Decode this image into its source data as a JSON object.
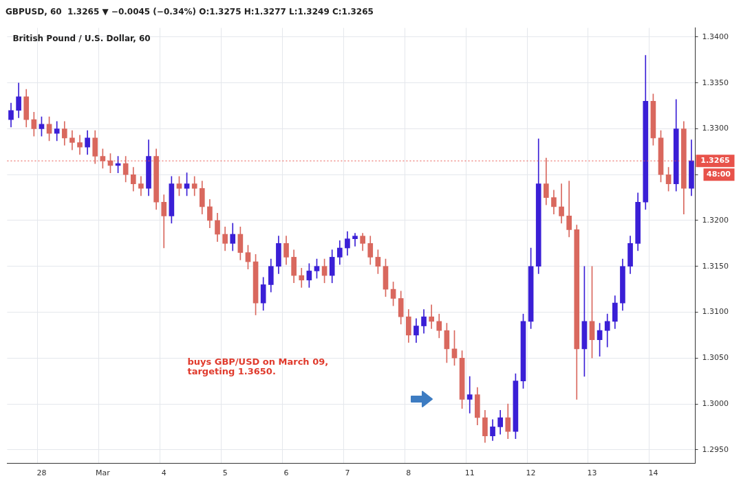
{
  "chart_data": {
    "type": "candlestick",
    "title": "GBPUSD, 60  1.3265 ▼ −0.0045 (−0.34%) O:1.3275 H:1.3277 L:1.3249 C:1.3265",
    "subtitle": "British Pound / U.S. Dollar, 60",
    "categories": [
      null,
      null,
      null,
      null,
      "28",
      null,
      null,
      null,
      null,
      null,
      null,
      null,
      "Mar",
      null,
      null,
      null,
      null,
      null,
      null,
      null,
      "4",
      null,
      null,
      null,
      null,
      null,
      null,
      null,
      "5",
      null,
      null,
      null,
      null,
      null,
      null,
      null,
      "6",
      null,
      null,
      null,
      null,
      null,
      null,
      null,
      "7",
      null,
      null,
      null,
      null,
      null,
      null,
      null,
      "8",
      null,
      null,
      null,
      null,
      null,
      null,
      null,
      "11",
      null,
      null,
      null,
      null,
      null,
      null,
      null,
      "12",
      null,
      null,
      null,
      null,
      null,
      null,
      null,
      "13",
      null,
      null,
      null,
      null,
      null,
      null,
      null,
      "14",
      null,
      null,
      null,
      null,
      null
    ],
    "ohlc": [
      [
        1.331,
        1.3328,
        1.3302,
        1.332
      ],
      [
        1.332,
        1.335,
        1.3312,
        1.3335
      ],
      [
        1.3335,
        1.3343,
        1.3302,
        1.331
      ],
      [
        1.331,
        1.3318,
        1.3292,
        1.33
      ],
      [
        1.33,
        1.3313,
        1.3292,
        1.3305
      ],
      [
        1.3305,
        1.3313,
        1.3287,
        1.3295
      ],
      [
        1.3295,
        1.3308,
        1.3287,
        1.33
      ],
      [
        1.33,
        1.3308,
        1.3282,
        1.329
      ],
      [
        1.329,
        1.3298,
        1.3277,
        1.3285
      ],
      [
        1.3285,
        1.3293,
        1.3272,
        1.328
      ],
      [
        1.328,
        1.3298,
        1.3272,
        1.329
      ],
      [
        1.329,
        1.3298,
        1.3262,
        1.327
      ],
      [
        1.327,
        1.3278,
        1.3257,
        1.3265
      ],
      [
        1.3265,
        1.3273,
        1.3252,
        1.326
      ],
      [
        1.326,
        1.327,
        1.3252,
        1.3262
      ],
      [
        1.3262,
        1.327,
        1.3242,
        1.325
      ],
      [
        1.325,
        1.3258,
        1.3232,
        1.324
      ],
      [
        1.324,
        1.3248,
        1.3227,
        1.3235
      ],
      [
        1.3235,
        1.3288,
        1.3227,
        1.327
      ],
      [
        1.327,
        1.3278,
        1.3212,
        1.322
      ],
      [
        1.322,
        1.3228,
        1.317,
        1.3205
      ],
      [
        1.3205,
        1.3248,
        1.3197,
        1.324
      ],
      [
        1.324,
        1.3248,
        1.3227,
        1.3235
      ],
      [
        1.3235,
        1.3252,
        1.3227,
        1.324
      ],
      [
        1.324,
        1.3248,
        1.3227,
        1.3235
      ],
      [
        1.3235,
        1.3243,
        1.3207,
        1.3215
      ],
      [
        1.3215,
        1.3223,
        1.3192,
        1.32
      ],
      [
        1.32,
        1.3208,
        1.3177,
        1.3185
      ],
      [
        1.3185,
        1.3193,
        1.3167,
        1.3175
      ],
      [
        1.3175,
        1.3197,
        1.3167,
        1.3185
      ],
      [
        1.3185,
        1.3193,
        1.3157,
        1.3165
      ],
      [
        1.3165,
        1.3173,
        1.3147,
        1.3155
      ],
      [
        1.3155,
        1.3163,
        1.3097,
        1.311
      ],
      [
        1.311,
        1.3138,
        1.3102,
        1.313
      ],
      [
        1.313,
        1.3158,
        1.3122,
        1.315
      ],
      [
        1.315,
        1.3183,
        1.3142,
        1.3175
      ],
      [
        1.3175,
        1.3183,
        1.3152,
        1.316
      ],
      [
        1.316,
        1.3168,
        1.3132,
        1.314
      ],
      [
        1.314,
        1.3148,
        1.3127,
        1.3135
      ],
      [
        1.3135,
        1.3153,
        1.3127,
        1.3145
      ],
      [
        1.3145,
        1.3158,
        1.3137,
        1.315
      ],
      [
        1.315,
        1.3158,
        1.3132,
        1.314
      ],
      [
        1.314,
        1.3168,
        1.3132,
        1.316
      ],
      [
        1.316,
        1.3178,
        1.3152,
        1.317
      ],
      [
        1.317,
        1.3188,
        1.3162,
        1.318
      ],
      [
        1.318,
        1.3186,
        1.3172,
        1.3183
      ],
      [
        1.3183,
        1.3186,
        1.3167,
        1.3175
      ],
      [
        1.3175,
        1.3183,
        1.3152,
        1.316
      ],
      [
        1.316,
        1.3168,
        1.3142,
        1.315
      ],
      [
        1.315,
        1.3158,
        1.3117,
        1.3125
      ],
      [
        1.3125,
        1.3133,
        1.3107,
        1.3115
      ],
      [
        1.3115,
        1.3123,
        1.3087,
        1.3095
      ],
      [
        1.3095,
        1.3103,
        1.3067,
        1.3075
      ],
      [
        1.3075,
        1.3093,
        1.3067,
        1.3085
      ],
      [
        1.3085,
        1.3103,
        1.3077,
        1.3095
      ],
      [
        1.3095,
        1.3108,
        1.3082,
        1.309
      ],
      [
        1.309,
        1.3098,
        1.3072,
        1.308
      ],
      [
        1.308,
        1.3088,
        1.3045,
        1.306
      ],
      [
        1.306,
        1.308,
        1.3042,
        1.305
      ],
      [
        1.305,
        1.3058,
        1.2995,
        1.3005
      ],
      [
        1.3005,
        1.303,
        1.299,
        1.301
      ],
      [
        1.301,
        1.3018,
        1.2977,
        1.2985
      ],
      [
        1.2985,
        1.2993,
        1.2958,
        1.2965
      ],
      [
        1.2965,
        1.2983,
        1.296,
        1.2975
      ],
      [
        1.2975,
        1.2993,
        1.2967,
        1.2985
      ],
      [
        1.2985,
        1.3,
        1.2962,
        1.297
      ],
      [
        1.297,
        1.3033,
        1.2962,
        1.3025
      ],
      [
        1.3025,
        1.3098,
        1.3017,
        1.309
      ],
      [
        1.309,
        1.317,
        1.3082,
        1.315
      ],
      [
        1.315,
        1.3289,
        1.3142,
        1.324
      ],
      [
        1.324,
        1.3268,
        1.3217,
        1.3225
      ],
      [
        1.3225,
        1.3233,
        1.3207,
        1.3215
      ],
      [
        1.3215,
        1.324,
        1.3197,
        1.3205
      ],
      [
        1.3205,
        1.3243,
        1.3182,
        1.319
      ],
      [
        1.319,
        1.3195,
        1.3005,
        1.306
      ],
      [
        1.306,
        1.315,
        1.303,
        1.309
      ],
      [
        1.309,
        1.315,
        1.305,
        1.307
      ],
      [
        1.307,
        1.3088,
        1.3052,
        1.308
      ],
      [
        1.308,
        1.3098,
        1.3062,
        1.309
      ],
      [
        1.309,
        1.3118,
        1.3082,
        1.311
      ],
      [
        1.311,
        1.3158,
        1.3102,
        1.315
      ],
      [
        1.315,
        1.3183,
        1.3142,
        1.3175
      ],
      [
        1.3175,
        1.323,
        1.3167,
        1.322
      ],
      [
        1.322,
        1.338,
        1.3212,
        1.333
      ],
      [
        1.333,
        1.3338,
        1.3282,
        1.329
      ],
      [
        1.329,
        1.3298,
        1.3242,
        1.325
      ],
      [
        1.325,
        1.3258,
        1.3232,
        1.324
      ],
      [
        1.324,
        1.3332,
        1.3232,
        1.33
      ],
      [
        1.33,
        1.3308,
        1.3207,
        1.3235
      ],
      [
        1.3235,
        1.3288,
        1.3227,
        1.3265
      ]
    ],
    "colors": [
      "#3a1fd6",
      "#3a1fd6",
      "#d9685e",
      "#d9685e",
      "#3a1fd6",
      "#d9685e",
      "#3a1fd6",
      "#d9685e",
      "#d9685e",
      "#d9685e",
      "#3a1fd6",
      "#d9685e",
      "#d9685e",
      "#d9685e",
      "#3a1fd6",
      "#d9685e",
      "#d9685e",
      "#d9685e",
      "#3a1fd6",
      "#d9685e",
      "#d9685e",
      "#3a1fd6",
      "#d9685e",
      "#3a1fd6",
      "#d9685e",
      "#d9685e",
      "#d9685e",
      "#d9685e",
      "#d9685e",
      "#3a1fd6",
      "#d9685e",
      "#d9685e",
      "#d9685e",
      "#3a1fd6",
      "#3a1fd6",
      "#3a1fd6",
      "#d9685e",
      "#d9685e",
      "#d9685e",
      "#3a1fd6",
      "#3a1fd6",
      "#d9685e",
      "#3a1fd6",
      "#3a1fd6",
      "#3a1fd6",
      "#3a1fd6",
      "#d9685e",
      "#d9685e",
      "#d9685e",
      "#d9685e",
      "#d9685e",
      "#d9685e",
      "#d9685e",
      "#3a1fd6",
      "#3a1fd6",
      "#d9685e",
      "#d9685e",
      "#d9685e",
      "#d9685e",
      "#d9685e",
      "#3a1fd6",
      "#d9685e",
      "#d9685e",
      "#3a1fd6",
      "#3a1fd6",
      "#d9685e",
      "#3a1fd6",
      "#3a1fd6",
      "#3a1fd6",
      "#3a1fd6",
      "#d9685e",
      "#d9685e",
      "#d9685e",
      "#d9685e",
      "#d9685e",
      "#3a1fd6",
      "#d9685e",
      "#3a1fd6",
      "#3a1fd6",
      "#3a1fd6",
      "#3a1fd6",
      "#3a1fd6",
      "#3a1fd6",
      "#3a1fd6",
      "#d9685e",
      "#d9685e",
      "#d9685e",
      "#3a1fd6",
      "#d9685e",
      "#3a1fd6"
    ],
    "ylim": [
      1.2935,
      1.341
    ],
    "yticks": [
      {
        "value": 1.295,
        "label": "1.2950"
      },
      {
        "value": 1.3,
        "label": "1.3000"
      },
      {
        "value": 1.305,
        "label": "1.3050"
      },
      {
        "value": 1.31,
        "label": "1.3100"
      },
      {
        "value": 1.315,
        "label": "1.3150"
      },
      {
        "value": 1.32,
        "label": "1.3200"
      },
      {
        "value": 1.325,
        "label": null
      },
      {
        "value": 1.33,
        "label": "1.3300"
      },
      {
        "value": 1.335,
        "label": "1.3350"
      },
      {
        "value": 1.34,
        "label": "1.3400"
      }
    ],
    "ref_lines": [
      {
        "axis": "y",
        "value": 1.3265,
        "label": "1.3265",
        "color": "#e8524a"
      }
    ],
    "annotations": [
      "buys GBP/USD on March 09,\ntargeting 1.3650.",
      "48:00"
    ],
    "grid": true,
    "legend": false
  }
}
